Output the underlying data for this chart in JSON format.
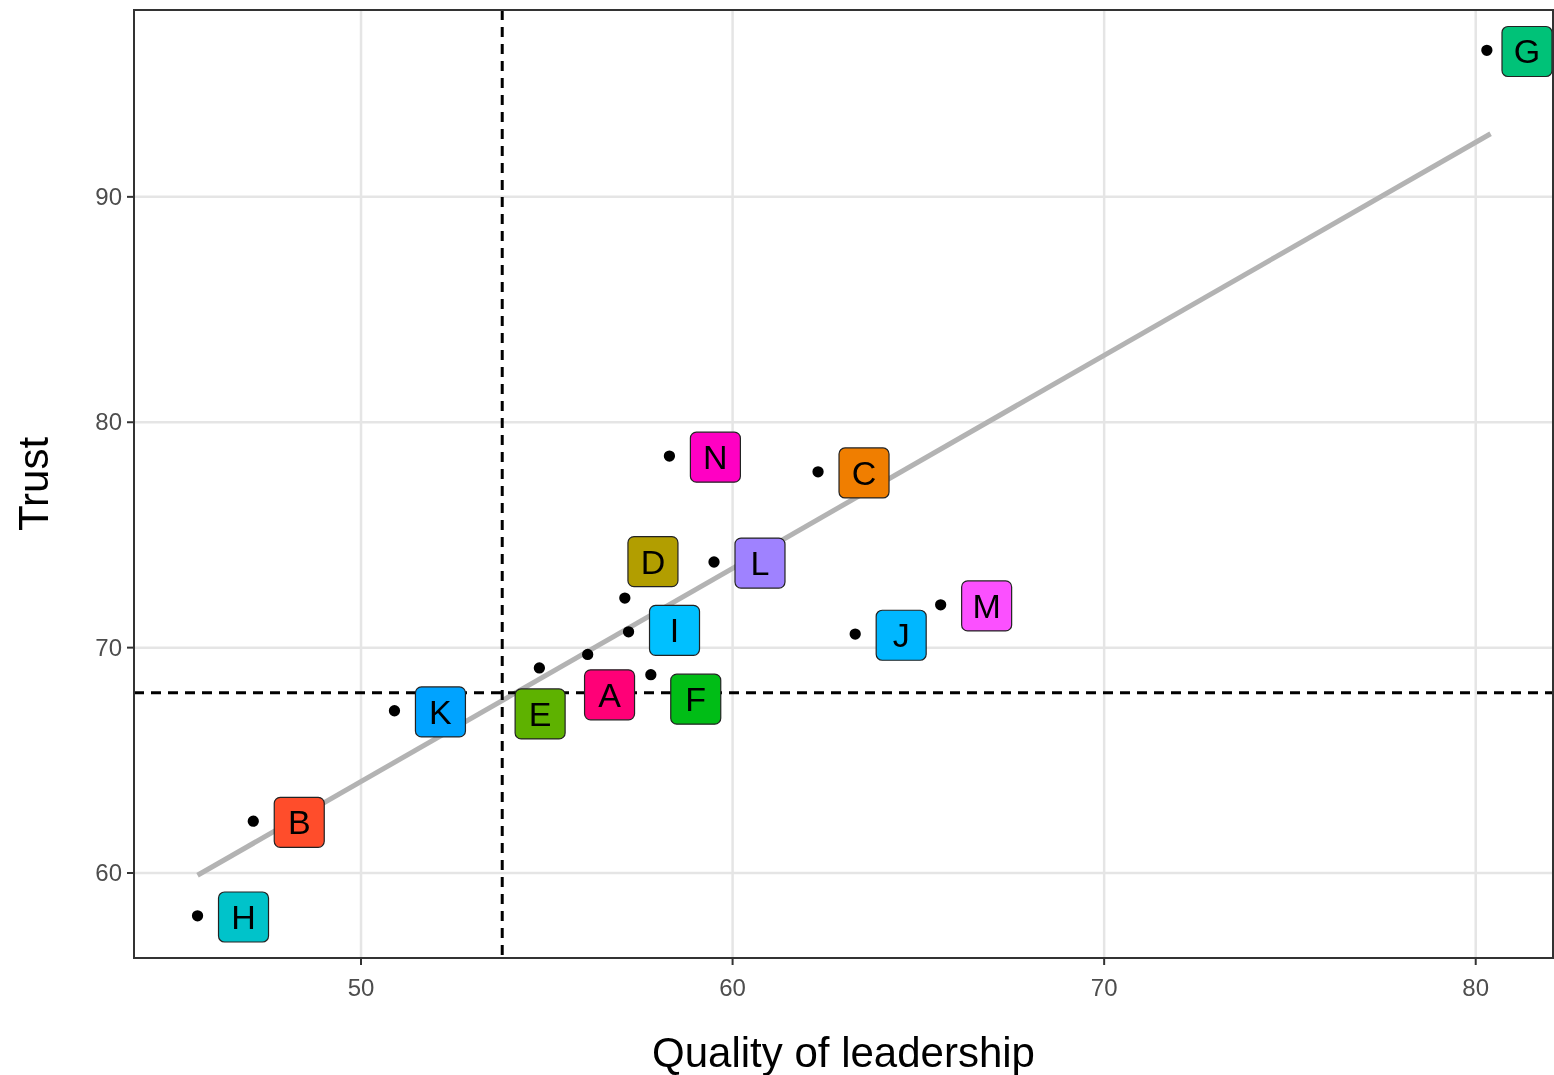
{
  "chart_data": {
    "type": "scatter",
    "xlabel": "Quality of leadership",
    "ylabel": "Trust",
    "xlim": [
      43.89,
      82.08
    ],
    "ylim": [
      56.23,
      98.29
    ],
    "xticks": [
      50,
      60,
      70,
      80
    ],
    "yticks": [
      60,
      70,
      80,
      90
    ],
    "grid": true,
    "series": [
      {
        "marker": "circle",
        "color": "#000000",
        "x": [
          56.1,
          47.1,
          62.3,
          57.1,
          54.8,
          57.8,
          80.3,
          45.6,
          57.2,
          63.3,
          50.9,
          59.5,
          65.6,
          58.3
        ],
        "values": [
          69.7,
          62.3,
          77.8,
          72.2,
          69.1,
          68.8,
          96.5,
          58.1,
          70.7,
          70.6,
          67.2,
          73.8,
          71.9,
          78.5
        ],
        "value_labels": [
          "A",
          "B",
          "C",
          "D",
          "E",
          "F",
          "G",
          "H",
          "I",
          "J",
          "K",
          "L",
          "M",
          "N"
        ]
      },
      {
        "type": "line",
        "color": "#b3b3b3",
        "x": [
          45.6,
          80.4
        ],
        "values": [
          59.9,
          92.8
        ]
      }
    ],
    "ref_lines": [
      {
        "axis": "x",
        "value": 53.8,
        "color": "#000000",
        "line_style": "dashed"
      },
      {
        "axis": "y",
        "value": 68.0,
        "color": "#000000",
        "line_style": "dashed"
      }
    ]
  }
}
